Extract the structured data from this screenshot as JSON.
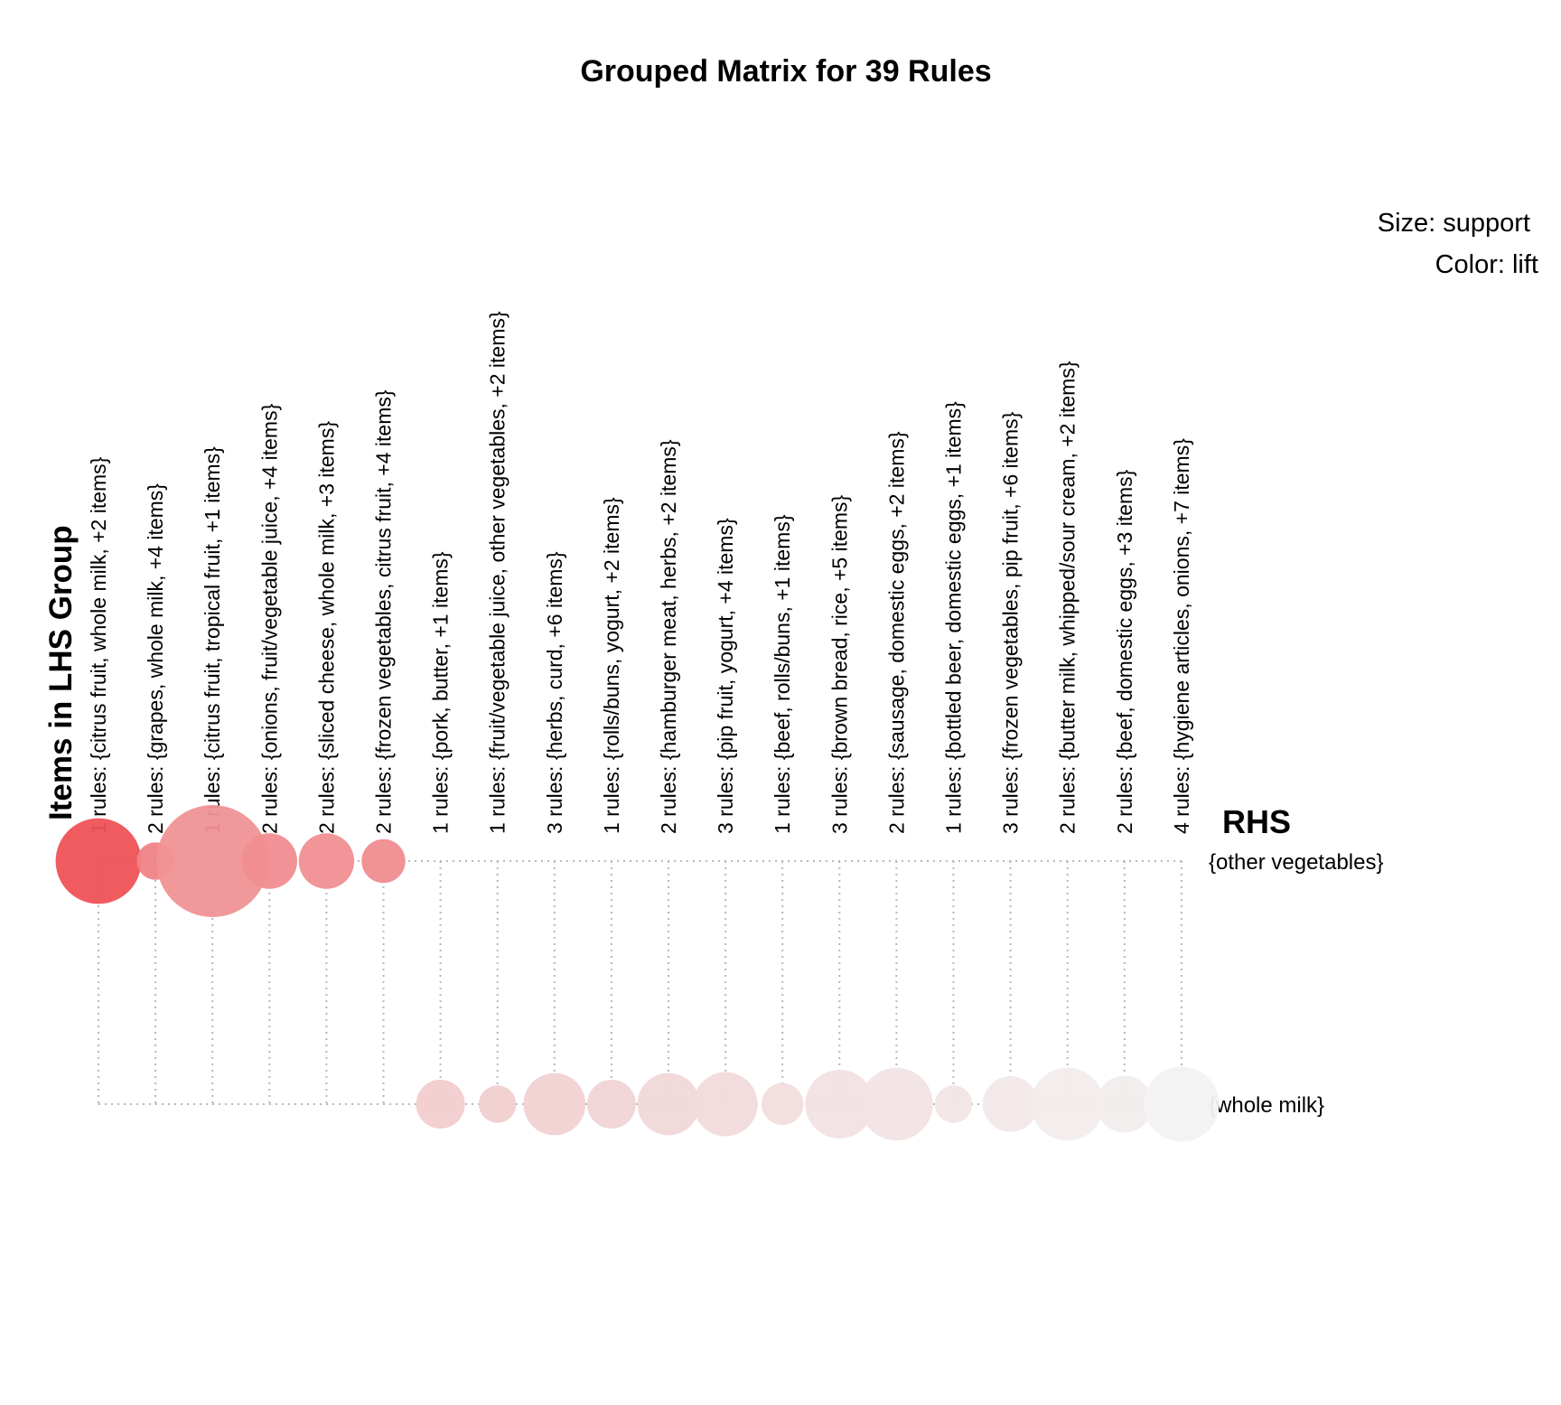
{
  "chart_data": {
    "type": "grouped-matrix",
    "title": "Grouped Matrix for 39 Rules",
    "xlabel": "Items in LHS Group",
    "ylabel": "RHS",
    "legend": {
      "size": "Size: support",
      "color": "Color: lift",
      "placement": "top-right"
    },
    "colors": {
      "high": "#ef5257",
      "low": "#f2f2f2",
      "grid": "#b8b8b8"
    },
    "rhs": [
      "{other vegetables}",
      "{whole milk}"
    ],
    "lhs_groups": [
      "1 rules: {citrus fruit, whole milk, +2 items}",
      "2 rules: {grapes, whole milk, +4 items}",
      "1 rules: {citrus fruit, tropical fruit, +1 items}",
      "2 rules: {onions, fruit/vegetable juice, +4 items}",
      "2 rules: {sliced cheese, whole milk, +3 items}",
      "2 rules: {frozen vegetables, citrus fruit, +4 items}",
      "1 rules: {pork, butter, +1 items}",
      "1 rules: {fruit/vegetable juice, other vegetables, +2 items}",
      "3 rules: {herbs, curd, +6 items}",
      "1 rules: {rolls/buns, yogurt, +2 items}",
      "2 rules: {hamburger meat, herbs, +2 items}",
      "3 rules: {pip fruit, yogurt, +4 items}",
      "1 rules: {beef, rolls/buns, +1 items}",
      "3 rules: {brown bread, rice, +5 items}",
      "2 rules: {sausage, domestic eggs, +2 items}",
      "1 rules: {bottled beer, domestic eggs, +1 items}",
      "3 rules: {frozen vegetables, pip fruit, +6 items}",
      "2 rules: {butter milk, whipped/sour cream, +2 items}",
      "2 rules: {beef, domestic eggs, +3 items}",
      "4 rules: {hygiene articles, onions, +7 items}"
    ],
    "points": [
      {
        "lhs": 0,
        "rhs": 0,
        "support": 0.5,
        "lift": 1.0
      },
      {
        "lhs": 1,
        "rhs": 0,
        "support": 0.03,
        "lift": 0.7
      },
      {
        "lhs": 2,
        "rhs": 0,
        "support": 1.0,
        "lift": 0.6
      },
      {
        "lhs": 3,
        "rhs": 0,
        "support": 0.14,
        "lift": 0.63
      },
      {
        "lhs": 4,
        "rhs": 0,
        "support": 0.14,
        "lift": 0.62
      },
      {
        "lhs": 5,
        "rhs": 0,
        "support": 0.06,
        "lift": 0.64
      },
      {
        "lhs": 6,
        "rhs": 1,
        "support": 0.09,
        "lift": 0.24
      },
      {
        "lhs": 7,
        "rhs": 1,
        "support": 0.03,
        "lift": 0.22
      },
      {
        "lhs": 8,
        "rhs": 1,
        "support": 0.2,
        "lift": 0.2
      },
      {
        "lhs": 9,
        "rhs": 1,
        "support": 0.09,
        "lift": 0.19
      },
      {
        "lhs": 10,
        "rhs": 1,
        "support": 0.2,
        "lift": 0.17
      },
      {
        "lhs": 11,
        "rhs": 1,
        "support": 0.22,
        "lift": 0.15
      },
      {
        "lhs": 12,
        "rhs": 1,
        "support": 0.05,
        "lift": 0.13
      },
      {
        "lhs": 13,
        "rhs": 1,
        "support": 0.27,
        "lift": 0.1
      },
      {
        "lhs": 14,
        "rhs": 1,
        "support": 0.32,
        "lift": 0.09
      },
      {
        "lhs": 15,
        "rhs": 1,
        "support": 0.03,
        "lift": 0.08
      },
      {
        "lhs": 16,
        "rhs": 1,
        "support": 0.14,
        "lift": 0.06
      },
      {
        "lhs": 17,
        "rhs": 1,
        "support": 0.32,
        "lift": 0.04
      },
      {
        "lhs": 18,
        "rhs": 1,
        "support": 0.15,
        "lift": 0.03
      },
      {
        "lhs": 19,
        "rhs": 1,
        "support": 0.35,
        "lift": 0.0
      }
    ]
  }
}
